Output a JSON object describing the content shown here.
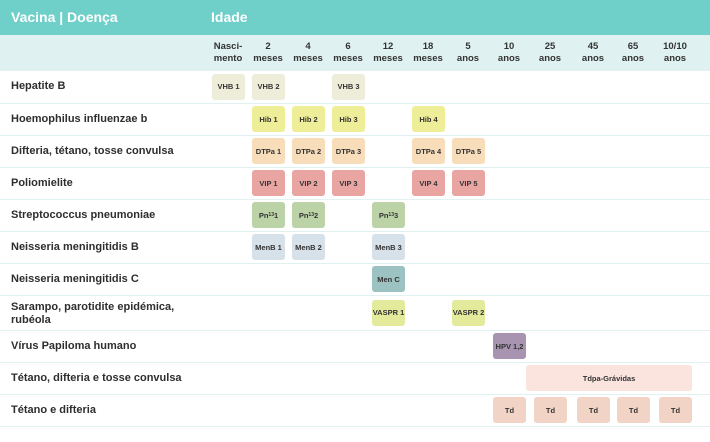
{
  "header": {
    "vaccine_disease": "Vacina | Doença",
    "age": "Idade"
  },
  "ages": [
    [
      "Nasci-",
      "mento"
    ],
    [
      "2",
      "meses"
    ],
    [
      "4",
      "meses"
    ],
    [
      "6",
      "meses"
    ],
    [
      "12",
      "meses"
    ],
    [
      "18",
      "meses"
    ],
    [
      "5",
      "anos"
    ],
    [
      "10",
      "anos"
    ],
    [
      "25",
      "anos"
    ],
    [
      "45",
      "anos"
    ],
    [
      "65",
      "anos"
    ],
    [
      "10/10",
      "anos"
    ]
  ],
  "rows": [
    {
      "label": "Hepatite B",
      "doses": [
        {
          "col": 0,
          "text": "VHB 1",
          "kind": "hb"
        },
        {
          "col": 1,
          "text": "VHB 2",
          "kind": "hb"
        },
        {
          "col": 3,
          "text": "VHB 3",
          "kind": "hb"
        }
      ]
    },
    {
      "label": "Hoemophilus influenzae b",
      "doses": [
        {
          "col": 1,
          "text": "Hib 1",
          "kind": "hib"
        },
        {
          "col": 2,
          "text": "Hib 2",
          "kind": "hib"
        },
        {
          "col": 3,
          "text": "Hib 3",
          "kind": "hib"
        },
        {
          "col": 5,
          "text": "Hib 4",
          "kind": "hib"
        }
      ]
    },
    {
      "label": "Difteria, tétano, tosse convulsa",
      "doses": [
        {
          "col": 1,
          "text": "DTPa 1",
          "kind": "dtp"
        },
        {
          "col": 2,
          "text": "DTPa 2",
          "kind": "dtp"
        },
        {
          "col": 3,
          "text": "DTPa 3",
          "kind": "dtp"
        },
        {
          "col": 5,
          "text": "DTPa 4",
          "kind": "dtp"
        },
        {
          "col": 6,
          "text": "DTPa 5",
          "kind": "dtp"
        }
      ]
    },
    {
      "label": "Poliomielite",
      "doses": [
        {
          "col": 1,
          "text": "VIP 1",
          "kind": "vip"
        },
        {
          "col": 2,
          "text": "VIP 2",
          "kind": "vip"
        },
        {
          "col": 3,
          "text": "VIP 3",
          "kind": "vip"
        },
        {
          "col": 5,
          "text": "VIP 4",
          "kind": "vip"
        },
        {
          "col": 6,
          "text": "VIP 5",
          "kind": "vip"
        }
      ]
    },
    {
      "label": "Streptococcus pneumoniae",
      "doses": [
        {
          "col": 1,
          "text": "Pn",
          "sub": "13",
          "num": "1",
          "kind": "pn"
        },
        {
          "col": 2,
          "text": "Pn",
          "sub": "13",
          "num": "2",
          "kind": "pn"
        },
        {
          "col": 4,
          "text": "Pn",
          "sub": "13",
          "num": "3",
          "kind": "pn"
        }
      ]
    },
    {
      "label": "Neisseria meningitidis B",
      "doses": [
        {
          "col": 1,
          "text": "MenB 1",
          "kind": "menb"
        },
        {
          "col": 2,
          "text": "MenB 2",
          "kind": "menb"
        },
        {
          "col": 4,
          "text": "MenB 3",
          "kind": "menb"
        }
      ]
    },
    {
      "label": "Neisseria meningitidis C",
      "doses": [
        {
          "col": 4,
          "text": "Men C",
          "kind": "menc"
        }
      ]
    },
    {
      "label": "Sarampo, parotidite epidémica,\nrubéola",
      "doses": [
        {
          "col": 4,
          "text": "VASPR 1",
          "kind": "vaspr"
        },
        {
          "col": 6,
          "text": "VASPR 2",
          "kind": "vaspr"
        }
      ]
    },
    {
      "label": "Vírus Papiloma humano",
      "doses": [
        {
          "col": 7,
          "text": "HPV 1,2",
          "kind": "hpv"
        }
      ]
    },
    {
      "label": "Tétano, difteria e tosse convulsa",
      "doses": [
        {
          "col": 8,
          "span": 4,
          "text": "Tdpa-Grávidas",
          "kind": "tdpa"
        }
      ]
    },
    {
      "label": "Tétano e difteria",
      "doses": [
        {
          "col": 7,
          "text": "Td",
          "kind": "td"
        },
        {
          "col": 8,
          "text": "Td",
          "kind": "td"
        },
        {
          "col": 9,
          "text": "Td",
          "kind": "td"
        },
        {
          "col": 10,
          "text": "Td",
          "kind": "td"
        },
        {
          "col": 11,
          "text": "Td",
          "kind": "td"
        }
      ]
    }
  ],
  "colors": {
    "header": "#6fcfc9",
    "subheader": "#dff1f0"
  }
}
